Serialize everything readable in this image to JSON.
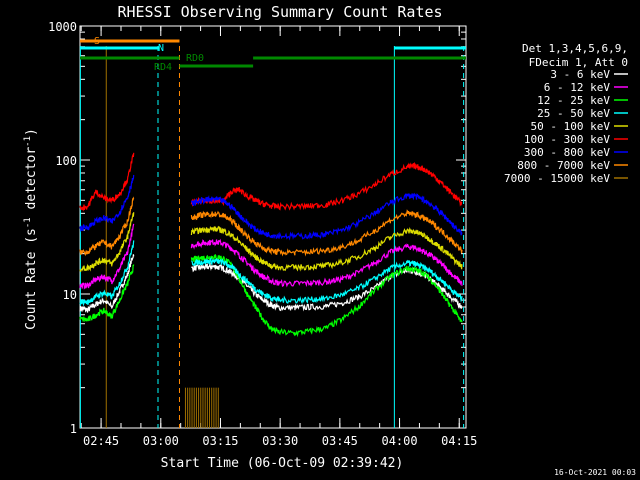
{
  "chart_data": {
    "type": "line",
    "title": "RHESSI Observing Summary Count Rates",
    "xlabel": "Start Time (06-Oct-09 02:39:42)",
    "ylabel_prefix": "Count Rate (s",
    "ylabel_sup1": "-1",
    "ylabel_mid": " detector",
    "ylabel_sup2": "-1",
    "ylabel_suffix": ")",
    "y_scale": "log",
    "ylim": [
      1,
      1000
    ],
    "xlim_minutes": [
      0,
      97
    ],
    "x_ticks": [
      {
        "label": "02:45",
        "minutes": 5.3
      },
      {
        "label": "03:00",
        "minutes": 20.3
      },
      {
        "label": "03:15",
        "minutes": 35.3
      },
      {
        "label": "03:30",
        "minutes": 50.3
      },
      {
        "label": "03:45",
        "minutes": 65.3
      },
      {
        "label": "04:00",
        "minutes": 80.3
      },
      {
        "label": "04:15",
        "minutes": 95.3
      }
    ],
    "y_ticks": [
      {
        "label": "1",
        "value": 1
      },
      {
        "label": "10",
        "value": 10
      },
      {
        "label": "100",
        "value": 100
      },
      {
        "label": "1000",
        "value": 1000
      }
    ],
    "legend_header": [
      "Det 1,3,4,5,6,9,",
      "FDecim 1, Att 0"
    ],
    "series": [
      {
        "name": "3 - 6 keV",
        "color": "#ffffff",
        "x": [
          0,
          2,
          4,
          6,
          8,
          10,
          12,
          13.5,
          14,
          26.5,
          28,
          30,
          32,
          34,
          36,
          38,
          40,
          42,
          44,
          46,
          48,
          50,
          54,
          58,
          62,
          66,
          70,
          74,
          78,
          82,
          84,
          86,
          88,
          90,
          92,
          94,
          96
        ],
        "y": [
          7.8,
          7.6,
          8.4,
          9.0,
          8.0,
          10.5,
          14.0,
          20,
          null,
          null,
          15.5,
          15.8,
          15.9,
          16.0,
          15.6,
          14.5,
          13.0,
          11.5,
          10.0,
          9.0,
          8.3,
          7.9,
          7.9,
          8.0,
          8.1,
          8.6,
          9.5,
          11.0,
          13.5,
          15.0,
          14.8,
          14.0,
          13.0,
          11.5,
          10.2,
          9.0,
          8.0
        ]
      },
      {
        "name": "6 - 12 keV",
        "color": "#ff00ff",
        "x": [
          0,
          2,
          4,
          6,
          8,
          10,
          12,
          13.5,
          14,
          26.5,
          28,
          30,
          32,
          34,
          36,
          38,
          40,
          42,
          44,
          46,
          48,
          50,
          54,
          58,
          62,
          66,
          70,
          74,
          78,
          82,
          84,
          86,
          88,
          90,
          92,
          94,
          96
        ],
        "y": [
          11.5,
          11.6,
          12.8,
          13.5,
          12.5,
          15.5,
          20.5,
          32,
          null,
          null,
          23,
          23.8,
          24.2,
          24.5,
          23.8,
          22.0,
          19.5,
          17.0,
          15.0,
          13.5,
          12.5,
          12.0,
          12.0,
          12.1,
          12.3,
          13.0,
          14.5,
          17.0,
          20.5,
          22.5,
          22.3,
          21.0,
          19.5,
          17.5,
          15.5,
          13.5,
          12.0
        ]
      },
      {
        "name": "12 - 25 keV",
        "color": "#00ff00",
        "x": [
          0,
          2,
          4,
          6,
          8,
          10,
          12,
          13.5,
          14,
          26.5,
          28,
          30,
          32,
          34,
          36,
          38,
          40,
          42,
          44,
          46,
          48,
          50,
          54,
          58,
          62,
          66,
          70,
          74,
          78,
          82,
          84,
          86,
          88,
          90,
          92,
          94,
          96
        ],
        "y": [
          6.5,
          6.4,
          7.0,
          7.5,
          6.8,
          9.0,
          12.0,
          16,
          null,
          null,
          18.0,
          18.5,
          18.8,
          19.0,
          18.5,
          16.5,
          13.0,
          10.0,
          8.0,
          6.5,
          5.5,
          5.2,
          5.1,
          5.3,
          5.6,
          6.5,
          8.0,
          10.5,
          13.5,
          15.5,
          15.2,
          14.5,
          13.0,
          11.0,
          9.0,
          7.5,
          6.0
        ]
      },
      {
        "name": "25 - 50 keV",
        "color": "#00ffff",
        "x": [
          0,
          2,
          4,
          6,
          8,
          10,
          12,
          13.5,
          14,
          26.5,
          28,
          30,
          32,
          34,
          36,
          38,
          40,
          42,
          44,
          46,
          48,
          50,
          54,
          58,
          62,
          66,
          70,
          74,
          78,
          82,
          84,
          86,
          88,
          90,
          92,
          94,
          96
        ],
        "y": [
          8.8,
          8.7,
          9.6,
          10.2,
          9.5,
          12.0,
          16.0,
          24,
          null,
          null,
          17.0,
          17.3,
          17.5,
          17.6,
          17.2,
          16.0,
          14.0,
          12.5,
          11.0,
          10.0,
          9.4,
          9.0,
          9.0,
          9.1,
          9.3,
          9.9,
          11.0,
          13.0,
          15.5,
          17.0,
          16.8,
          16.0,
          14.8,
          13.2,
          11.8,
          10.3,
          9.2
        ]
      },
      {
        "name": "50 - 100 keV",
        "color": "#dddd00",
        "x": [
          0,
          2,
          4,
          6,
          8,
          10,
          12,
          13.5,
          14,
          26.5,
          28,
          30,
          32,
          34,
          36,
          38,
          40,
          42,
          44,
          46,
          48,
          50,
          54,
          58,
          62,
          66,
          70,
          74,
          78,
          82,
          84,
          86,
          88,
          90,
          92,
          94,
          96
        ],
        "y": [
          15.5,
          15.6,
          17.0,
          18.0,
          16.8,
          20.5,
          27.0,
          40,
          null,
          null,
          29.0,
          29.8,
          30.3,
          30.6,
          29.8,
          27.5,
          24.5,
          21.5,
          19.0,
          17.3,
          16.3,
          15.8,
          15.8,
          16.0,
          16.3,
          17.2,
          19.0,
          22.0,
          26.5,
          29.5,
          29.2,
          27.8,
          25.5,
          23.0,
          20.5,
          18.0,
          16.0
        ]
      },
      {
        "name": "100 - 300 keV",
        "color": "#ff0000",
        "x": [
          0,
          2,
          4,
          6,
          8,
          10,
          12,
          13.5,
          14,
          26.5,
          28,
          30,
          32,
          34,
          36,
          38,
          40,
          42,
          44,
          46,
          48,
          50,
          54,
          58,
          62,
          66,
          70,
          74,
          78,
          82,
          84,
          86,
          88,
          90,
          92,
          94,
          96
        ],
        "y": [
          44,
          45,
          58,
          52,
          50,
          56,
          72,
          110,
          null,
          null,
          48,
          49,
          49.5,
          50,
          49,
          58,
          60,
          54,
          50,
          47,
          45.5,
          45,
          45,
          45.5,
          46.5,
          50,
          56,
          65,
          78,
          88,
          90,
          87,
          80,
          71,
          62,
          54,
          47
        ]
      },
      {
        "name": "300 - 800 keV",
        "color": "#0000ff",
        "x": [
          0,
          2,
          4,
          6,
          8,
          10,
          12,
          13.5,
          14,
          26.5,
          28,
          30,
          32,
          34,
          36,
          38,
          40,
          42,
          44,
          46,
          48,
          50,
          54,
          58,
          62,
          66,
          70,
          74,
          78,
          82,
          84,
          86,
          88,
          90,
          92,
          94,
          96
        ],
        "y": [
          31,
          31.5,
          35,
          37,
          34.5,
          41,
          53,
          75,
          null,
          null,
          47,
          49.5,
          50.5,
          51,
          49.5,
          45,
          39,
          34,
          30.5,
          28.5,
          27.5,
          27.2,
          27.0,
          27.3,
          28.0,
          30.0,
          34,
          40,
          48,
          54,
          54,
          51,
          47,
          42,
          37,
          32,
          28
        ]
      },
      {
        "name": "800 - 7000 keV",
        "color": "#ff8800",
        "x": [
          0,
          2,
          4,
          6,
          8,
          10,
          12,
          13.5,
          14,
          26.5,
          28,
          30,
          32,
          34,
          36,
          38,
          40,
          42,
          44,
          46,
          48,
          50,
          54,
          58,
          62,
          66,
          70,
          74,
          78,
          82,
          84,
          86,
          88,
          90,
          92,
          94,
          96
        ],
        "y": [
          20.5,
          20.7,
          22.8,
          24.5,
          22.5,
          27.0,
          35.0,
          52,
          null,
          null,
          37.0,
          38.5,
          39.2,
          39.6,
          38.5,
          35.5,
          31.0,
          27.0,
          24.0,
          22.0,
          21.0,
          20.5,
          20.4,
          20.7,
          21.2,
          22.5,
          25.0,
          29.5,
          35.5,
          40.0,
          39.5,
          37.5,
          34.5,
          31.0,
          27.5,
          24.0,
          21.0
        ]
      },
      {
        "name": "7000 - 15000 keV",
        "color": "#a07000",
        "x": [],
        "y": []
      }
    ],
    "state_bars": [
      {
        "label": "S",
        "color": "#ff8800",
        "row": 1,
        "segments": [
          [
            0,
            25
          ]
        ]
      },
      {
        "label": "N",
        "color": "#00ffff",
        "row": 2,
        "segments": [
          [
            0,
            20
          ],
          [
            79,
            97
          ]
        ]
      },
      {
        "label": "RD0",
        "color": "#008800",
        "row": 3,
        "segments": [
          [
            0,
            25
          ],
          [
            43.5,
            97
          ]
        ]
      },
      {
        "label": "RD4",
        "color": "#008800",
        "row": 4,
        "segments": [
          [
            25,
            43.5
          ]
        ]
      }
    ],
    "vertical_markers": [
      {
        "color": "#00ffff",
        "minutes": 0.1,
        "style": "solid"
      },
      {
        "color": "#00ffff",
        "minutes": 19.6,
        "style": "dashed"
      },
      {
        "color": "#00ffff",
        "minutes": 79.0,
        "style": "solid"
      },
      {
        "color": "#00ffff",
        "minutes": 96.4,
        "style": "dashed"
      },
      {
        "color": "#a07000",
        "minutes": 6.6,
        "style": "solid"
      },
      {
        "color": "#ff8800",
        "minutes": 25.0,
        "style": "dashed"
      }
    ]
  },
  "footer_stamp": "16-Oct-2021 00:03"
}
